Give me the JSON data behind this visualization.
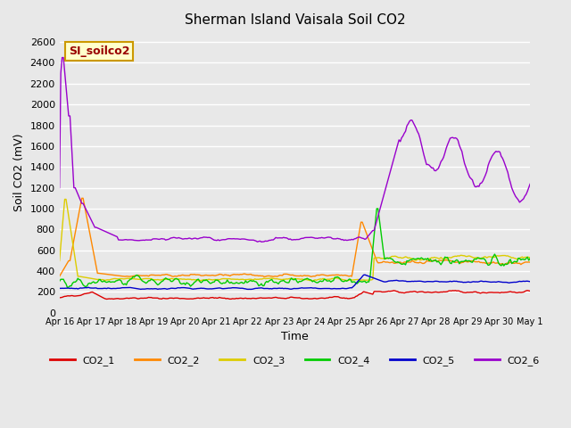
{
  "title": "Sherman Island Vaisala Soil CO2",
  "xlabel": "Time",
  "ylabel": "Soil CO2 (mV)",
  "ylim": [
    0,
    2700
  ],
  "yticks": [
    0,
    200,
    400,
    600,
    800,
    1000,
    1200,
    1400,
    1600,
    1800,
    2000,
    2200,
    2400,
    2600
  ],
  "bg_color": "#e8e8e8",
  "plot_bg_color": "#e8e8e8",
  "legend_label": "SI_soilco2",
  "legend_box_color": "#ffffcc",
  "legend_box_edge": "#cc9900",
  "legend_text_color": "#990000",
  "series_colors": {
    "CO2_1": "#dd0000",
    "CO2_2": "#ff8800",
    "CO2_3": "#ddcc00",
    "CO2_4": "#00cc00",
    "CO2_5": "#0000cc",
    "CO2_6": "#9900cc"
  },
  "n_points": 360,
  "date_start": 16,
  "date_end_label": "May 1",
  "xtick_labels": [
    "Apr 16",
    "Apr 17",
    "Apr 18",
    "Apr 19",
    "Apr 20",
    "Apr 21",
    "Apr 22",
    "Apr 23",
    "Apr 24",
    "Apr 25",
    "Apr 26",
    "Apr 27",
    "Apr 28",
    "Apr 29",
    "Apr 30",
    "May 1"
  ]
}
